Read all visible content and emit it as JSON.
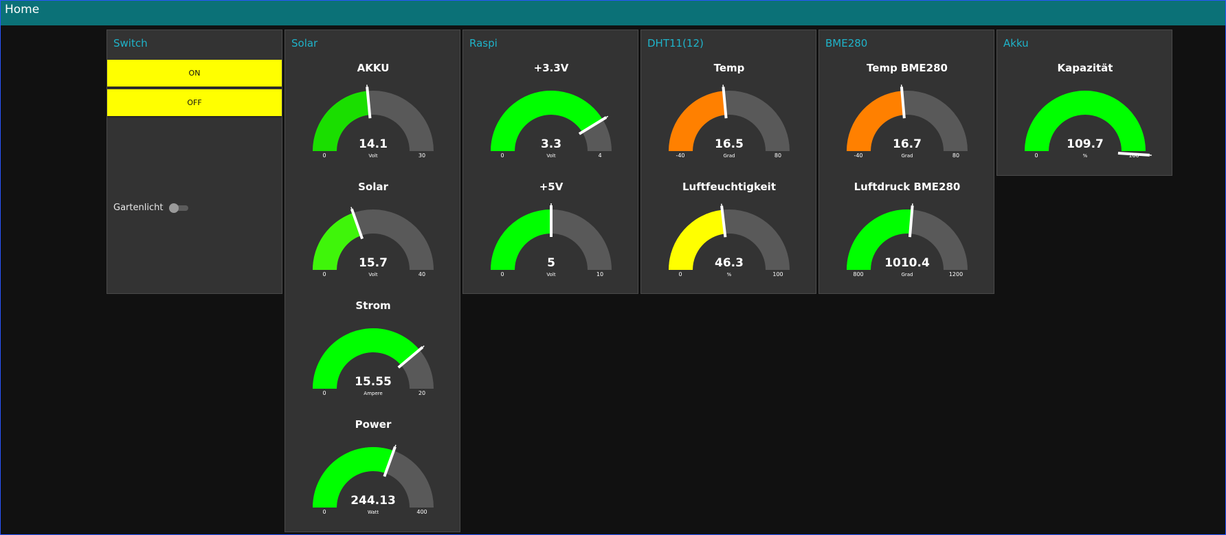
{
  "header": {
    "title": "Home"
  },
  "colors": {
    "header": "#0b7177",
    "card": "#333333",
    "group_title": "#1fb3c9",
    "track": "#595959",
    "button": "#ffff00",
    "needle": "#ffffff"
  },
  "groups": [
    {
      "title": "Switch",
      "buttons": [
        {
          "label": "ON"
        },
        {
          "label": "OFF"
        }
      ],
      "toggle": {
        "label": "Gartenlicht",
        "state": "off"
      }
    },
    {
      "title": "Solar",
      "gauges": [
        {
          "label": "AKKU",
          "value": "14.1",
          "unit": "Volt",
          "min": "0",
          "max": "30",
          "color": "#1ade00"
        },
        {
          "label": "Solar",
          "value": "15.7",
          "unit": "Volt",
          "min": "0",
          "max": "40",
          "color": "#3ff50a"
        },
        {
          "label": "Strom",
          "value": "15.55",
          "unit": "Ampere",
          "min": "0",
          "max": "20",
          "color": "#00ff00"
        },
        {
          "label": "Power",
          "value": "244.13",
          "unit": "Watt",
          "min": "0",
          "max": "400",
          "color": "#00ff00"
        }
      ]
    },
    {
      "title": "Raspi",
      "gauges": [
        {
          "label": "+3.3V",
          "value": "3.3",
          "unit": "Volt",
          "min": "0",
          "max": "4",
          "color": "#00ff00"
        },
        {
          "label": "+5V",
          "value": "5",
          "unit": "Volt",
          "min": "0",
          "max": "10",
          "color": "#00ff00"
        }
      ]
    },
    {
      "title": "DHT11(12)",
      "gauges": [
        {
          "label": "Temp",
          "value": "16.5",
          "unit": "Grad",
          "min": "-40",
          "max": "80",
          "color": "#ff8000"
        },
        {
          "label": "Luftfeuchtigkeit",
          "value": "46.3",
          "unit": "%",
          "min": "0",
          "max": "100",
          "color": "#ffff00"
        }
      ]
    },
    {
      "title": "BME280",
      "gauges": [
        {
          "label": "Temp BME280",
          "value": "16.7",
          "unit": "Grad",
          "min": "-40",
          "max": "80",
          "color": "#ff8000"
        },
        {
          "label": "Luftdruck BME280",
          "value": "1010.4",
          "unit": "Grad",
          "min": "800",
          "max": "1200",
          "color": "#00ff00"
        }
      ]
    },
    {
      "title": "Akku",
      "gauges": [
        {
          "label": "Kapazität",
          "value": "109.7",
          "unit": "%",
          "min": "0",
          "max": "100",
          "color": "#00ff00"
        }
      ]
    }
  ]
}
